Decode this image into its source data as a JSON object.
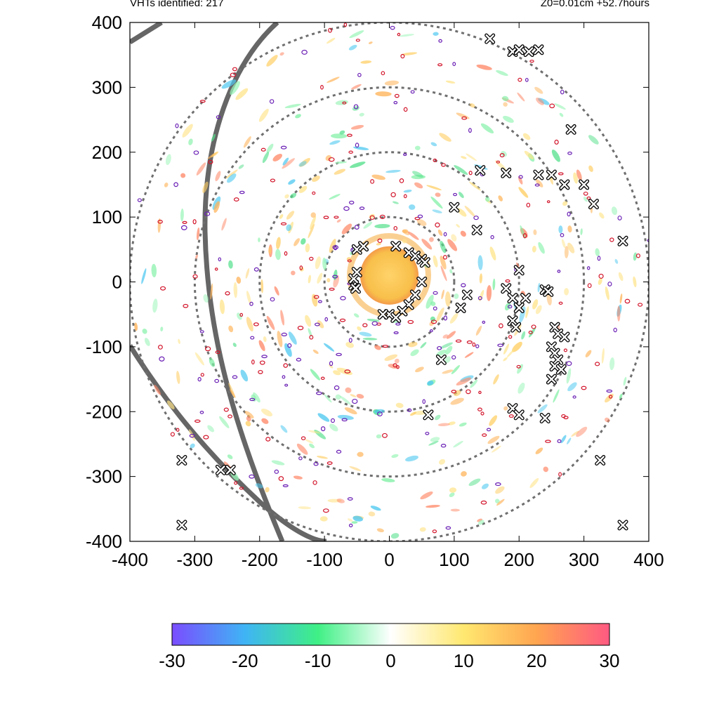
{
  "header": {
    "left": "VHTs identified: 217",
    "right": "Z0=0.01cm  +52.7hours"
  },
  "chart_data": {
    "type": "scatter",
    "xlim": [
      -400,
      400
    ],
    "ylim": [
      -400,
      400
    ],
    "xticks": [
      "-400",
      "-300",
      "-200",
      "-100",
      "0",
      "100",
      "200",
      "300",
      "400"
    ],
    "yticks": [
      "400",
      "300",
      "200",
      "100",
      "0",
      "-100",
      "-200",
      "-300",
      "-400"
    ],
    "range_rings": [
      100,
      200,
      300,
      400
    ],
    "grid": false,
    "colorbar": {
      "range": [
        -30,
        30
      ],
      "ticks": [
        "-30",
        "-20",
        "-10",
        "0",
        "10",
        "20",
        "30"
      ],
      "colors": [
        "#7a4dff",
        "#3fb4f5",
        "#3ff085",
        "#ffffff",
        "#ffe870",
        "#ffa550",
        "#ff5a82"
      ]
    },
    "core": {
      "x": 0,
      "y": 10,
      "radius": 45,
      "color": "#f8bf4a"
    },
    "vht_markers": [
      [
        -50,
        50
      ],
      [
        -40,
        55
      ],
      [
        10,
        55
      ],
      [
        30,
        45
      ],
      [
        40,
        40
      ],
      [
        50,
        35
      ],
      [
        55,
        30
      ],
      [
        50,
        0
      ],
      [
        40,
        -20
      ],
      [
        30,
        -35
      ],
      [
        20,
        -45
      ],
      [
        0,
        -50
      ],
      [
        -10,
        -50
      ],
      [
        10,
        -55
      ],
      [
        -55,
        -5
      ],
      [
        -55,
        5
      ],
      [
        -52,
        -10
      ],
      [
        -50,
        15
      ],
      [
        100,
        115
      ],
      [
        140,
        172
      ],
      [
        135,
        80
      ],
      [
        180,
        168
      ],
      [
        230,
        165
      ],
      [
        250,
        165
      ],
      [
        270,
        150
      ],
      [
        300,
        150
      ],
      [
        315,
        120
      ],
      [
        360,
        63
      ],
      [
        280,
        235
      ],
      [
        155,
        375
      ],
      [
        190,
        355
      ],
      [
        200,
        358
      ],
      [
        215,
        355
      ],
      [
        230,
        358
      ],
      [
        180,
        -10
      ],
      [
        190,
        -25
      ],
      [
        200,
        -40
      ],
      [
        190,
        -60
      ],
      [
        195,
        -70
      ],
      [
        210,
        -25
      ],
      [
        240,
        -12
      ],
      [
        245,
        -15
      ],
      [
        200,
        18
      ],
      [
        120,
        -20
      ],
      [
        110,
        -40
      ],
      [
        255,
        -70
      ],
      [
        260,
        -80
      ],
      [
        270,
        -85
      ],
      [
        250,
        -100
      ],
      [
        255,
        -110
      ],
      [
        260,
        -120
      ],
      [
        255,
        -130
      ],
      [
        265,
        -135
      ],
      [
        250,
        -150
      ],
      [
        80,
        -120
      ],
      [
        190,
        -195
      ],
      [
        200,
        -205
      ],
      [
        240,
        -210
      ],
      [
        60,
        -205
      ],
      [
        -320,
        -275
      ],
      [
        -260,
        -290
      ],
      [
        -245,
        -290
      ],
      [
        -320,
        -375
      ],
      [
        325,
        -275
      ],
      [
        360,
        -375
      ]
    ]
  }
}
